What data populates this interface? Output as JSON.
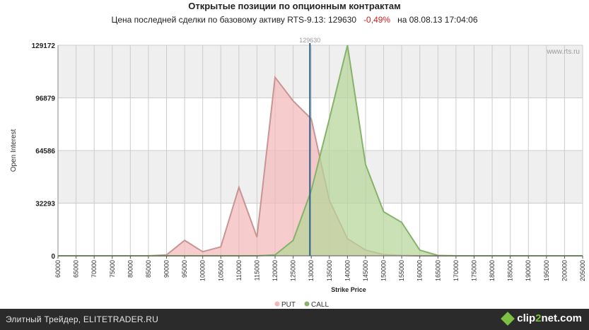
{
  "header": {
    "title": "Открытые позиции по опционным контрактам",
    "subtitle_prefix": "Цена последней сделки по базовому активу RTS-9.13: 129630",
    "subtitle_change": "-0,49%",
    "subtitle_suffix": "на 08.08.13 17:04:06"
  },
  "watermark": "www.rts.ru",
  "footer": {
    "site": "Элитный Трейдер, ELITETRADER.RU",
    "logo_a": "clip",
    "logo_b": "2",
    "logo_c": "net.com"
  },
  "colors": {
    "put_fill": "#f2b8b8",
    "put_line": "#c99494",
    "call_fill": "#b5d69a",
    "call_line": "#86b26a",
    "price_line": "#2a5d8a",
    "band": "#efefef",
    "grid": "#cccccc"
  },
  "chart_data": {
    "type": "area",
    "xlabel": "Strike Price",
    "ylabel": "Open Interest",
    "xlim": [
      60000,
      205000
    ],
    "ylim": [
      0,
      129172
    ],
    "y_ticks": [
      0,
      32293,
      64586,
      96879,
      129172
    ],
    "x_ticks": [
      60000,
      65000,
      70000,
      75000,
      80000,
      85000,
      90000,
      95000,
      100000,
      105000,
      110000,
      115000,
      120000,
      125000,
      130000,
      135000,
      140000,
      145000,
      150000,
      155000,
      160000,
      165000,
      170000,
      175000,
      180000,
      185000,
      190000,
      195000,
      200000,
      205000
    ],
    "price_marker": {
      "label": "129630",
      "value": 129630
    },
    "legend": "bottom-center",
    "series": [
      {
        "name": "PUT",
        "x": [
          60000,
          65000,
          70000,
          75000,
          80000,
          85000,
          90000,
          95000,
          100000,
          105000,
          110000,
          115000,
          120000,
          125000,
          130000,
          135000,
          140000,
          145000,
          150000,
          155000,
          160000,
          165000,
          170000,
          175000,
          180000,
          185000,
          190000,
          195000,
          200000,
          205000
        ],
        "values": [
          0,
          0,
          0,
          0,
          0,
          0,
          500,
          9500,
          2500,
          5500,
          42000,
          11500,
          109500,
          95000,
          84000,
          34000,
          10500,
          3500,
          800,
          200,
          0,
          0,
          0,
          0,
          0,
          0,
          0,
          0,
          0,
          0
        ]
      },
      {
        "name": "CALL",
        "x": [
          60000,
          65000,
          70000,
          75000,
          80000,
          85000,
          90000,
          95000,
          100000,
          105000,
          110000,
          115000,
          120000,
          125000,
          130000,
          135000,
          140000,
          145000,
          150000,
          155000,
          160000,
          165000,
          170000,
          175000,
          180000,
          185000,
          190000,
          195000,
          200000,
          205000
        ],
        "values": [
          0,
          0,
          0,
          0,
          0,
          0,
          0,
          0,
          0,
          0,
          0,
          0,
          500,
          9500,
          40000,
          84000,
          129172,
          56000,
          27000,
          20500,
          3500,
          200,
          0,
          0,
          0,
          0,
          0,
          0,
          0,
          0
        ]
      }
    ]
  }
}
